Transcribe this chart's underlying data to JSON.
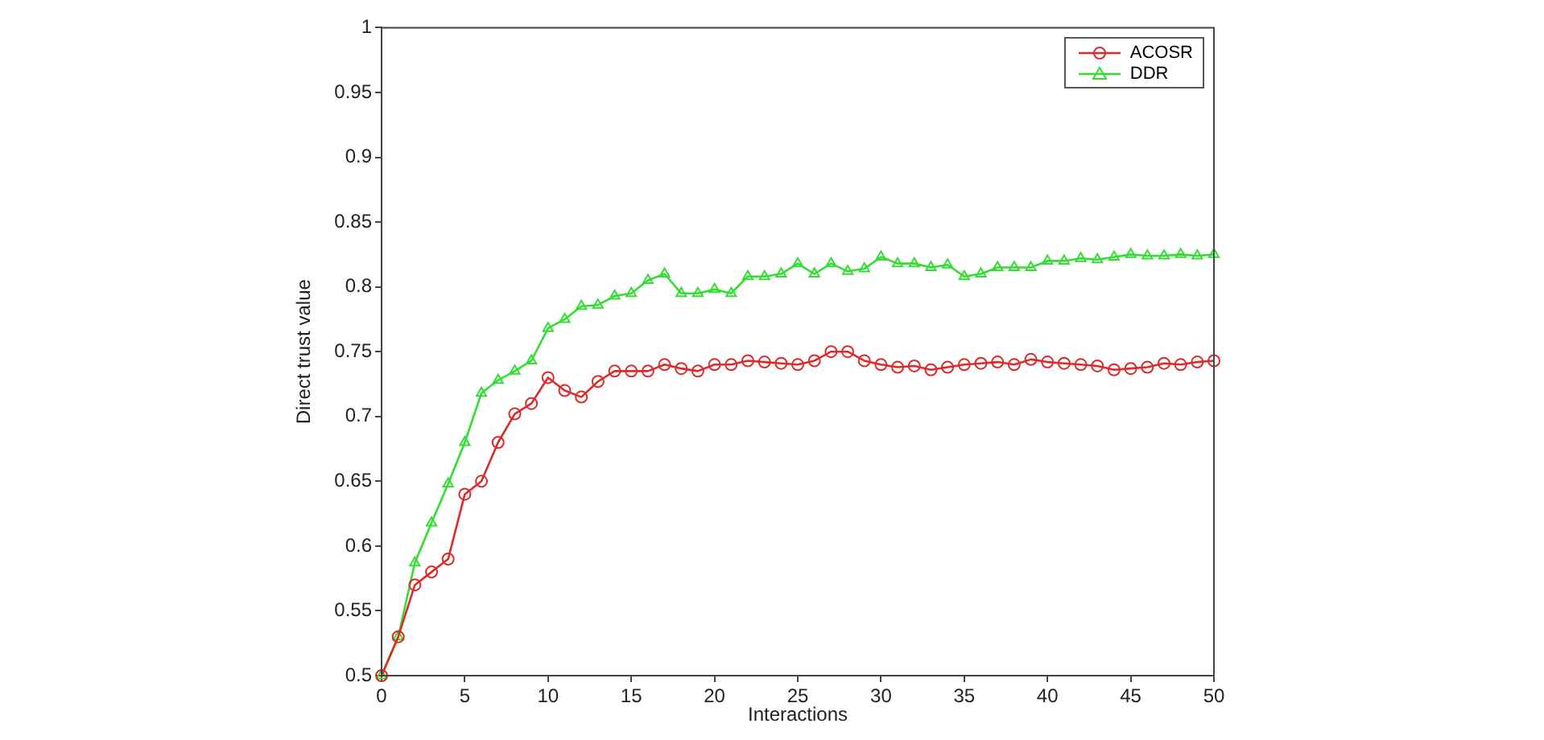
{
  "chart_data": {
    "type": "line",
    "xlabel": "Interactions",
    "ylabel": "Direct trust value",
    "x": [
      0,
      1,
      2,
      3,
      4,
      5,
      6,
      7,
      8,
      9,
      10,
      11,
      12,
      13,
      14,
      15,
      16,
      17,
      18,
      19,
      20,
      21,
      22,
      23,
      24,
      25,
      26,
      27,
      28,
      29,
      30,
      31,
      32,
      33,
      34,
      35,
      36,
      37,
      38,
      39,
      40,
      41,
      42,
      43,
      44,
      45,
      46,
      47,
      48,
      49,
      50
    ],
    "xlim": [
      0,
      50
    ],
    "xticks": [
      0,
      5,
      10,
      15,
      20,
      25,
      30,
      35,
      40,
      45,
      50
    ],
    "ylim": [
      0.5,
      1
    ],
    "yticks": [
      0.5,
      0.55,
      0.6,
      0.65,
      0.7,
      0.75,
      0.8,
      0.85,
      0.9,
      0.95,
      1
    ],
    "grid": false,
    "legend": "top right",
    "series": [
      {
        "name": "ACOSR",
        "color": "#dd2a2a",
        "marker": "circle",
        "values": [
          0.5,
          0.53,
          0.57,
          0.58,
          0.59,
          0.64,
          0.65,
          0.68,
          0.702,
          0.71,
          0.73,
          0.72,
          0.715,
          0.727,
          0.735,
          0.735,
          0.735,
          0.74,
          0.737,
          0.735,
          0.74,
          0.74,
          0.743,
          0.742,
          0.741,
          0.74,
          0.743,
          0.75,
          0.75,
          0.743,
          0.74,
          0.738,
          0.739,
          0.736,
          0.738,
          0.74,
          0.741,
          0.742,
          0.74,
          0.744,
          0.742,
          0.741,
          0.74,
          0.739,
          0.736,
          0.737,
          0.738,
          0.741,
          0.74,
          0.742,
          0.743
        ]
      },
      {
        "name": "DDR",
        "color": "#33dd33",
        "marker": "triangle",
        "values": [
          0.5,
          0.53,
          0.587,
          0.618,
          0.648,
          0.68,
          0.718,
          0.728,
          0.735,
          0.743,
          0.768,
          0.775,
          0.785,
          0.786,
          0.793,
          0.795,
          0.805,
          0.81,
          0.795,
          0.795,
          0.798,
          0.795,
          0.808,
          0.808,
          0.81,
          0.818,
          0.81,
          0.818,
          0.812,
          0.814,
          0.823,
          0.818,
          0.818,
          0.815,
          0.817,
          0.808,
          0.81,
          0.815,
          0.815,
          0.815,
          0.82,
          0.82,
          0.822,
          0.821,
          0.823,
          0.825,
          0.824,
          0.824,
          0.825,
          0.824,
          0.825
        ]
      }
    ]
  }
}
